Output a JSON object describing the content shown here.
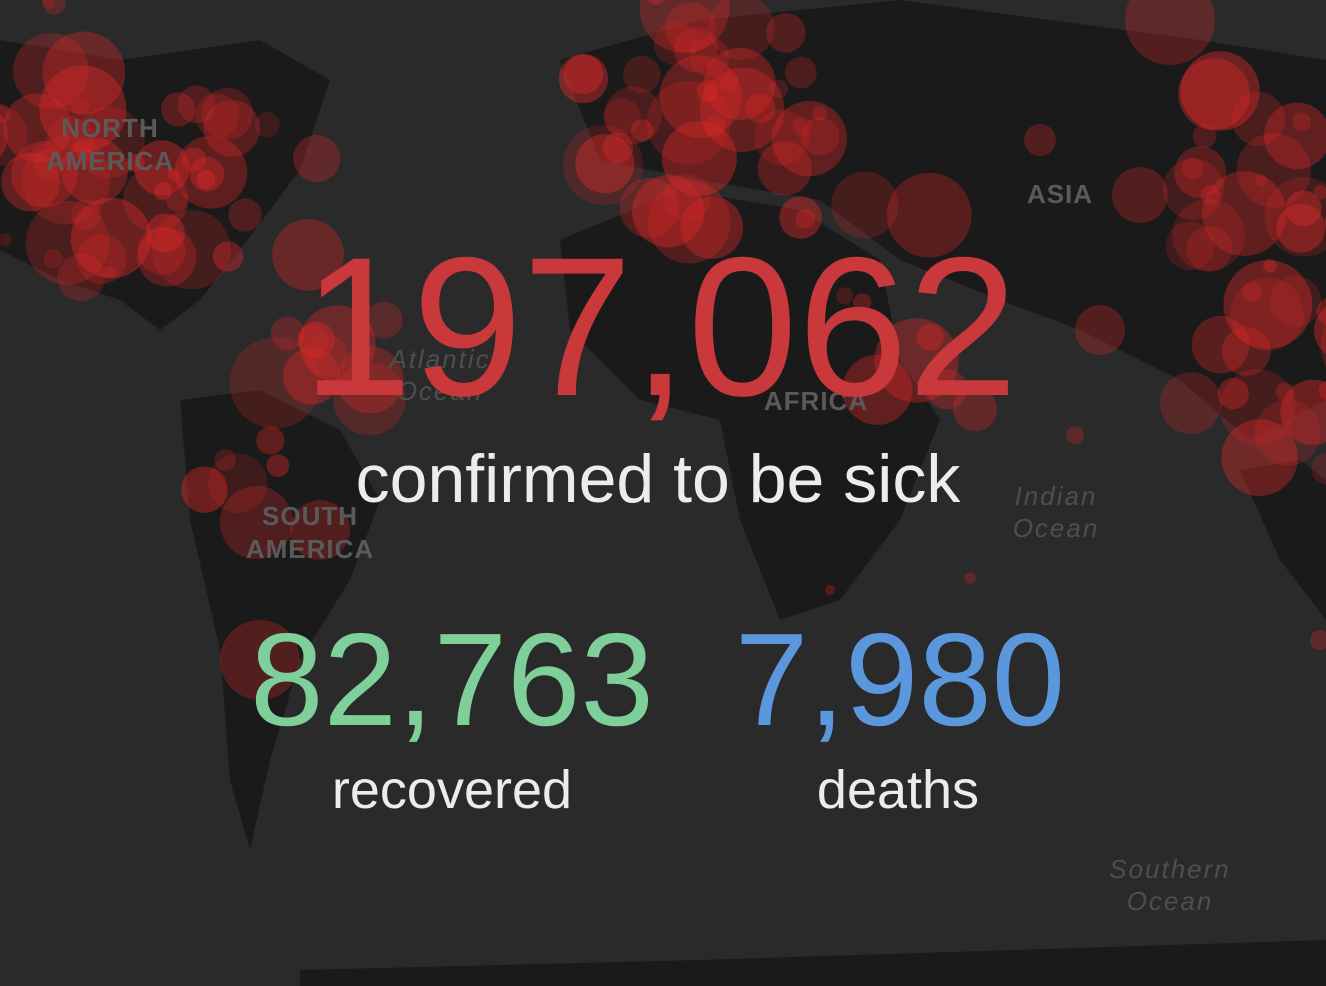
{
  "map_labels": {
    "north_america": [
      "NORTH",
      "AMERICA"
    ],
    "south_america": [
      "SOUTH",
      "AMERICA"
    ],
    "africa": "AFRICA",
    "asia": "ASIA",
    "atlantic": [
      "Atlantic",
      "Ocean"
    ],
    "indian": [
      "Indian",
      "Ocean"
    ],
    "southern": [
      "Southern",
      "Ocean"
    ]
  },
  "stats": {
    "confirmed": {
      "number": "197,062",
      "label": "confirmed to be sick"
    },
    "recovered": {
      "number": "82,763",
      "label": "recovered"
    },
    "deaths": {
      "number": "7,980",
      "label": "deaths"
    }
  }
}
